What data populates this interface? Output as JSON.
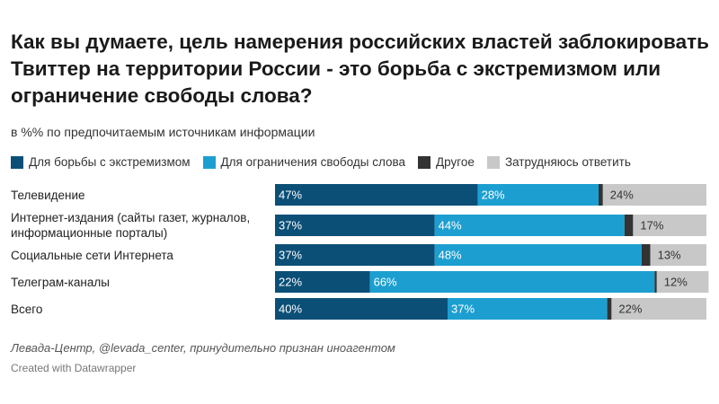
{
  "chart_data": {
    "type": "stacked_bar_horizontal",
    "title": "Как вы думаете, цель намерения российских властей заблокировать Твиттер на территории России - это борьба с экстремизмом или ограничение свободы слова?",
    "subtitle": "в %% по предпочитаемым источникам информации",
    "categories": [
      "Телевидение",
      "Интернет-издания (сайты газет, журналов, информационные порталы)",
      "Социальные сети Интернета",
      "Телеграм-каналы",
      "Всего"
    ],
    "xlim": [
      0,
      100
    ],
    "series": [
      {
        "name": "Для борьбы с экстремизмом",
        "color": "#0b4f77",
        "label_color": "#ffffff",
        "values": [
          47,
          37,
          37,
          22,
          40
        ],
        "value_labels": [
          "47%",
          "37%",
          "37%",
          "22%",
          "40%"
        ]
      },
      {
        "name": "Для ограничения свободы слова",
        "color": "#1c9fd0",
        "label_color": "#ffffff",
        "values": [
          28,
          44,
          48,
          66,
          37
        ],
        "value_labels": [
          "28%",
          "44%",
          "48%",
          "66%",
          "37%"
        ]
      },
      {
        "name": "Другое",
        "color": "#333333",
        "values": [
          1,
          2,
          2,
          0.5,
          1
        ]
      },
      {
        "name": "Затрудняюсь ответить",
        "color": "#c8c8c8",
        "label_color": "#333333",
        "values": [
          24,
          17,
          13,
          12,
          22
        ],
        "value_labels": [
          "24%",
          "17%",
          "13%",
          "12%",
          "22%"
        ]
      }
    ],
    "source": "Левада-Центр, @levada_center, принудительно признан иноагентом",
    "credit": "Created with Datawrapper"
  }
}
